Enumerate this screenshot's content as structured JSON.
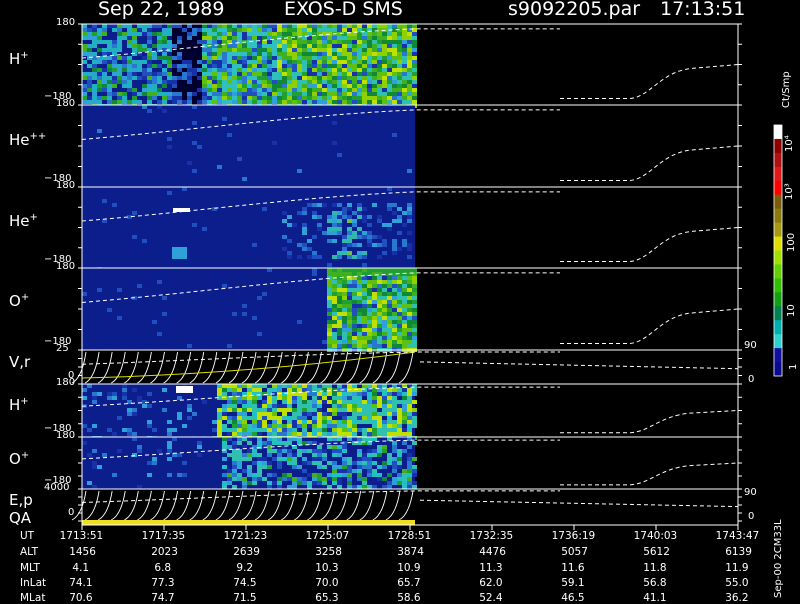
{
  "header": {
    "date": "Sep 22, 1989",
    "instrument": "EXOS-D SMS",
    "file": "s9092205.par",
    "time": "17:13:51"
  },
  "colorbar": {
    "unit": "Ct/Smp",
    "labels": [
      "10⁴",
      "10³",
      "100",
      "10",
      "1"
    ],
    "colors": [
      "#ffffff",
      "#8b0000",
      "#b01010",
      "#e01818",
      "#ff0000",
      "#7a5c0a",
      "#8c7a10",
      "#a69a10",
      "#e0e000",
      "#a0e000",
      "#60d000",
      "#30c000",
      "#10a010",
      "#008050",
      "#00b0b0",
      "#30d0d0",
      "#1010a0",
      "#0a0a90"
    ]
  },
  "panels": [
    {
      "label": "H",
      "sup": "+",
      "ymax": "180",
      "ymin": "−180"
    },
    {
      "label": "He",
      "sup": "++",
      "ymax": "180",
      "ymin": "−180"
    },
    {
      "label": "He",
      "sup": "+",
      "ymax": "180",
      "ymin": "−180"
    },
    {
      "label": "O",
      "sup": "+",
      "ymax": "180",
      "ymin": "−180"
    },
    {
      "label": "V,r",
      "sup": "",
      "ymax": "25",
      "ymin": "0",
      "rtop": "90",
      "rbottom": "0"
    },
    {
      "label": "H",
      "sup": "+",
      "ymax": "180",
      "ymin": "−180"
    },
    {
      "label": "O",
      "sup": "+",
      "ymax": "180",
      "ymin": "−180"
    },
    {
      "label": "E,p",
      "sup": "",
      "ymax": "4000",
      "ymin": "0",
      "rtop": "90",
      "rbottom": "0"
    }
  ],
  "qa_label": "QA",
  "sidebar_note": "Sep-00 2CM33L",
  "ephemeris": {
    "rows": [
      {
        "name": "UT",
        "values": [
          "1713:51",
          "1717:35",
          "1721:23",
          "1725:07",
          "1728:51",
          "1732:35",
          "1736:19",
          "1740:03",
          "1743:47"
        ]
      },
      {
        "name": "ALT",
        "values": [
          "1456",
          "2023",
          "2639",
          "3258",
          "3874",
          "4476",
          "5057",
          "5612",
          "6139"
        ]
      },
      {
        "name": "MLT",
        "values": [
          "4.1",
          "6.8",
          "9.2",
          "10.3",
          "10.9",
          "11.3",
          "11.6",
          "11.8",
          "11.9"
        ]
      },
      {
        "name": "InLat",
        "values": [
          "74.1",
          "77.3",
          "74.5",
          "70.0",
          "65.7",
          "62.0",
          "59.1",
          "56.8",
          "55.0"
        ]
      },
      {
        "name": "MLat",
        "values": [
          "70.6",
          "74.7",
          "71.5",
          "65.3",
          "58.6",
          "52.4",
          "46.5",
          "41.1",
          "36.2"
        ]
      }
    ]
  },
  "chart_data": {
    "type": "heatmap",
    "title": "Sep 22, 1989   EXOS-D SMS",
    "subtitle": "s9092205.par  17:13:51",
    "x_ticks": [
      "1713:51",
      "1717:35",
      "1721:23",
      "1725:07",
      "1728:51",
      "1732:35",
      "1736:19",
      "1740:03",
      "1743:47"
    ],
    "data_end": "1728:51",
    "color_scale": "log",
    "color_range": [
      1,
      10000
    ],
    "color_unit": "Ct/Smp",
    "panels": [
      {
        "name": "H+",
        "yrange": [
          -180,
          180
        ]
      },
      {
        "name": "He++",
        "yrange": [
          -180,
          180
        ]
      },
      {
        "name": "He+",
        "yrange": [
          -180,
          180
        ]
      },
      {
        "name": "O+",
        "yrange": [
          -180,
          180
        ]
      },
      {
        "name": "V,r",
        "yrange": [
          0,
          25
        ],
        "right_range": [
          0,
          90
        ]
      },
      {
        "name": "H+",
        "yrange": [
          -180,
          180
        ]
      },
      {
        "name": "O+",
        "yrange": [
          -180,
          180
        ]
      },
      {
        "name": "E,p",
        "yrange": [
          0,
          4000
        ],
        "right_range": [
          0,
          90
        ]
      }
    ]
  }
}
